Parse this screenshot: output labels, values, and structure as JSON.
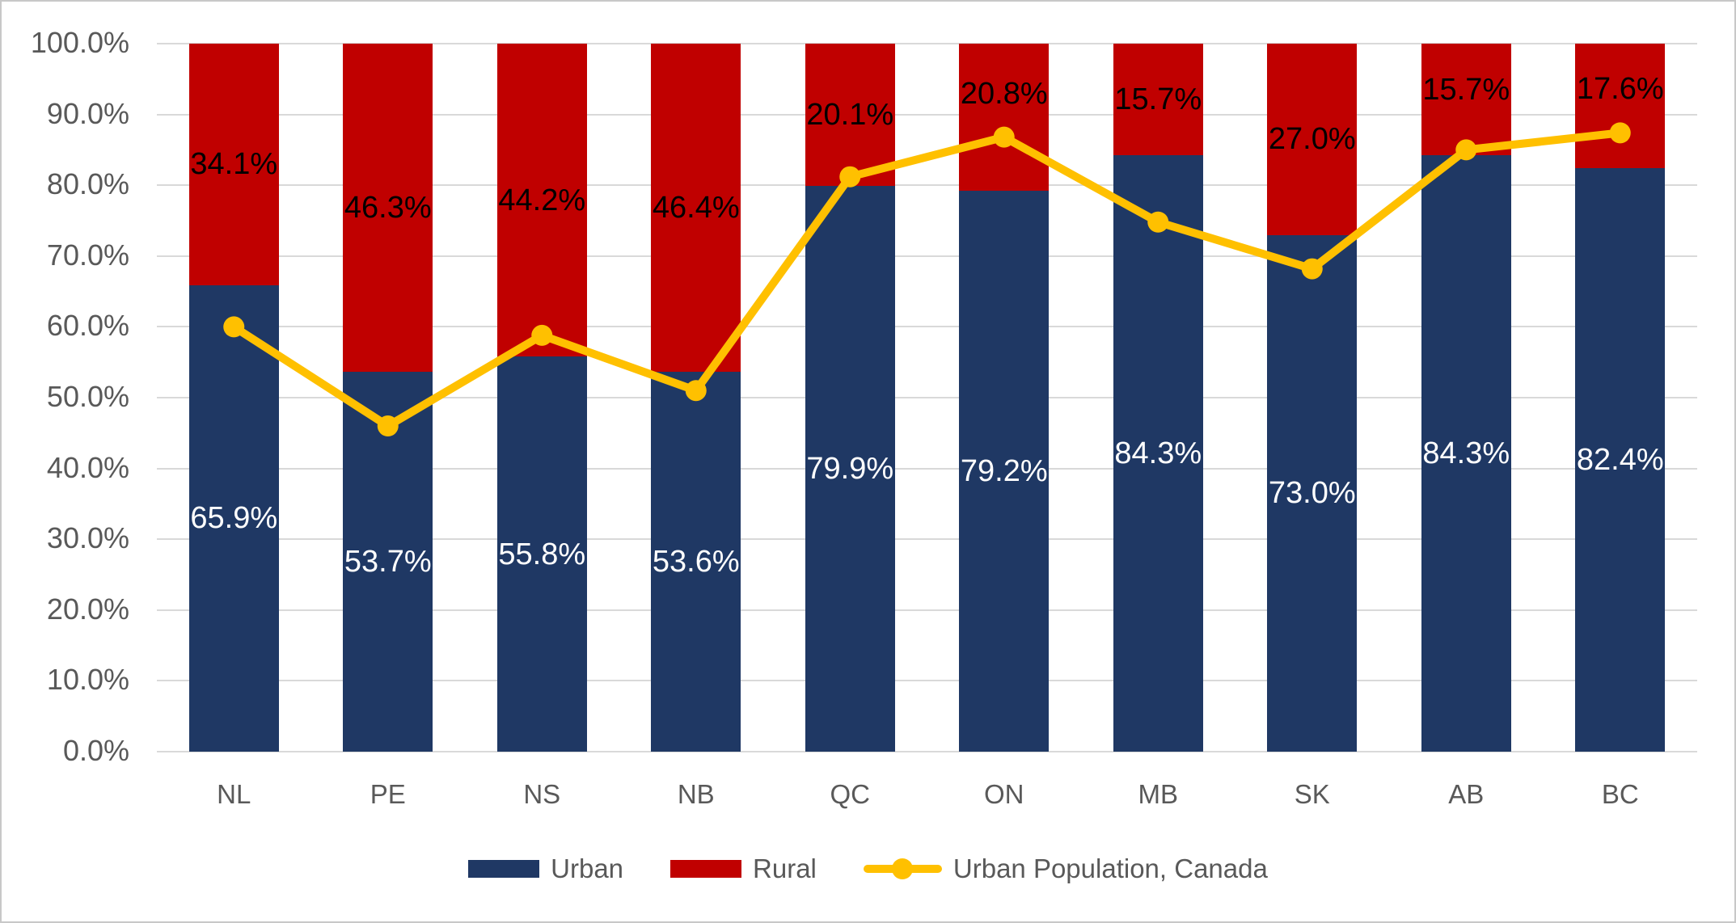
{
  "chart_data": {
    "type": "bar",
    "subtype": "stacked-column-with-line-overlay",
    "categories": [
      "NL",
      "PE",
      "NS",
      "NB",
      "QC",
      "ON",
      "MB",
      "SK",
      "AB",
      "BC"
    ],
    "series": [
      {
        "name": "Urban",
        "type": "bar",
        "color": "#1F3864",
        "values": [
          65.9,
          53.7,
          55.8,
          53.6,
          79.9,
          79.2,
          84.3,
          73.0,
          84.3,
          82.4
        ],
        "labels": [
          "65.9%",
          "53.7%",
          "55.8%",
          "53.6%",
          "79.9%",
          "79.2%",
          "84.3%",
          "73.0%",
          "84.3%",
          "82.4%"
        ],
        "label_color": "#FFFFFF"
      },
      {
        "name": "Rural",
        "type": "bar",
        "color": "#C00000",
        "values": [
          34.1,
          46.3,
          44.2,
          46.4,
          20.1,
          20.8,
          15.7,
          27.0,
          15.7,
          17.6
        ],
        "labels": [
          "34.1%",
          "46.3%",
          "44.2%",
          "46.4%",
          "20.1%",
          "20.8%",
          "15.7%",
          "27.0%",
          "15.7%",
          "17.6%"
        ],
        "label_color": "#000000",
        "label_shift_pct": [
          0,
          0,
          0,
          0,
          0,
          3.3,
          0,
          0,
          1.3,
          2.4
        ]
      },
      {
        "name": "Urban Population, Canada",
        "type": "line",
        "color": "#FFC000",
        "values": [
          60.0,
          46.0,
          58.8,
          51.0,
          81.2,
          86.8,
          74.8,
          68.2,
          85.0,
          87.4
        ]
      }
    ],
    "y_axis": {
      "min": 0,
      "max": 100,
      "step": 10,
      "tick_labels": [
        "0.0%",
        "10.0%",
        "20.0%",
        "30.0%",
        "40.0%",
        "50.0%",
        "60.0%",
        "70.0%",
        "80.0%",
        "90.0%",
        "100.0%"
      ]
    },
    "x_axis": {
      "tick_labels": [
        "NL",
        "PE",
        "NS",
        "NB",
        "QC",
        "ON",
        "MB",
        "SK",
        "AB",
        "BC"
      ]
    },
    "title": "",
    "grid": true,
    "legend_position": "bottom",
    "styles": {
      "gridline_color": "#D9D9D9",
      "axis_text_color": "#595959",
      "background": "#FFFFFF",
      "frame_border_color": "#C8C8C8"
    }
  }
}
